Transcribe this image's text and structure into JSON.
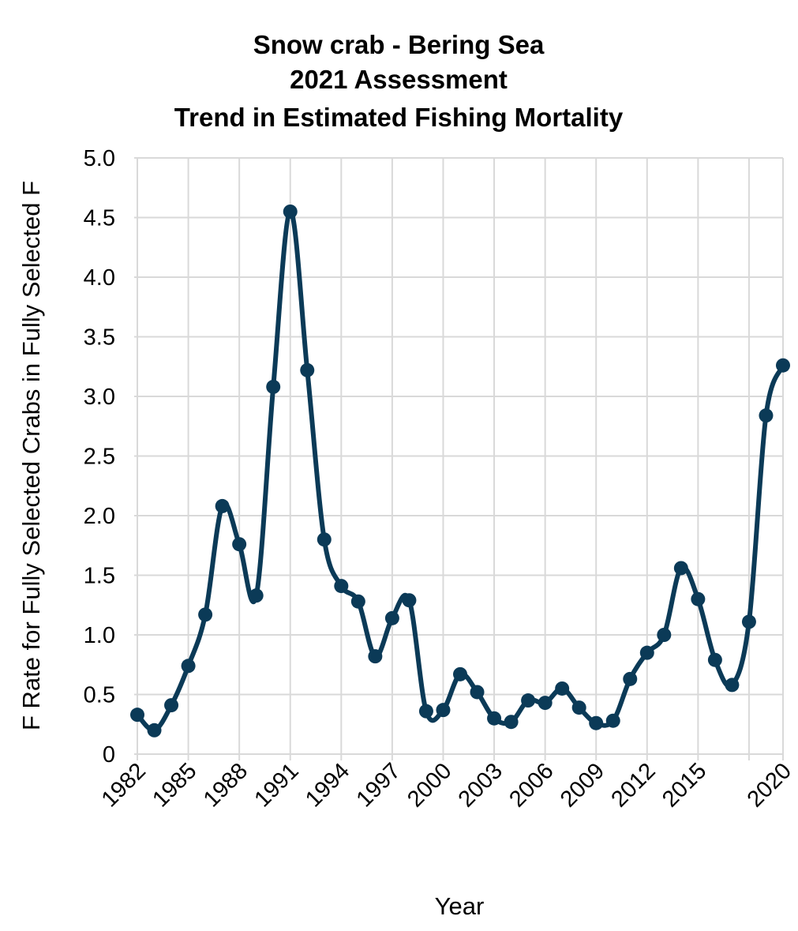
{
  "chart_data": {
    "type": "line",
    "title": [
      "Snow crab - Bering Sea",
      "2021 Assessment",
      "Trend in Estimated Fishing Mortality"
    ],
    "xlabel": "Year",
    "ylabel": "F Rate for Fully Selected Crabs in Fully Selected F",
    "xlim": [
      1982,
      2020
    ],
    "ylim": [
      0,
      5
    ],
    "x_ticks": [
      1982,
      1985,
      1988,
      1991,
      1994,
      1997,
      2000,
      2003,
      2006,
      2009,
      2012,
      2015,
      2020
    ],
    "x_tick_labels": [
      "1982",
      "1985",
      "1988",
      "1991",
      "1994",
      "1997",
      "2000",
      "2003",
      "2006",
      "2009",
      "2012",
      "2015",
      "2020"
    ],
    "x_grid": [
      1982,
      1985,
      1988,
      1991,
      1994,
      1997,
      2000,
      2003,
      2006,
      2009,
      2012,
      2015,
      2018,
      2020
    ],
    "y_ticks": [
      0,
      0.5,
      1.0,
      1.5,
      2.0,
      2.5,
      3.0,
      3.5,
      4.0,
      4.5,
      5.0
    ],
    "y_tick_labels": [
      "0",
      "0.5",
      "1.0",
      "1.5",
      "2.0",
      "2.5",
      "3.0",
      "3.5",
      "4.0",
      "4.5",
      "5.0"
    ],
    "grid": true,
    "line_color": "#0b3a57",
    "series": [
      {
        "name": "F",
        "x": [
          1982,
          1983,
          1984,
          1985,
          1986,
          1987,
          1988,
          1989,
          1990,
          1991,
          1992,
          1993,
          1994,
          1995,
          1996,
          1997,
          1998,
          1999,
          2000,
          2001,
          2002,
          2003,
          2004,
          2005,
          2006,
          2007,
          2008,
          2009,
          2010,
          2011,
          2012,
          2013,
          2014,
          2015,
          2016,
          2017,
          2018,
          2019,
          2020
        ],
        "values": [
          0.33,
          0.2,
          0.41,
          0.74,
          1.17,
          2.08,
          1.76,
          1.33,
          3.08,
          4.55,
          3.22,
          1.8,
          1.41,
          1.28,
          0.82,
          1.14,
          1.29,
          0.36,
          0.37,
          0.67,
          0.52,
          0.3,
          0.27,
          0.45,
          0.43,
          0.55,
          0.39,
          0.26,
          0.28,
          0.63,
          0.85,
          1.0,
          1.56,
          1.3,
          0.79,
          0.58,
          1.11,
          2.84,
          3.26
        ]
      }
    ]
  }
}
